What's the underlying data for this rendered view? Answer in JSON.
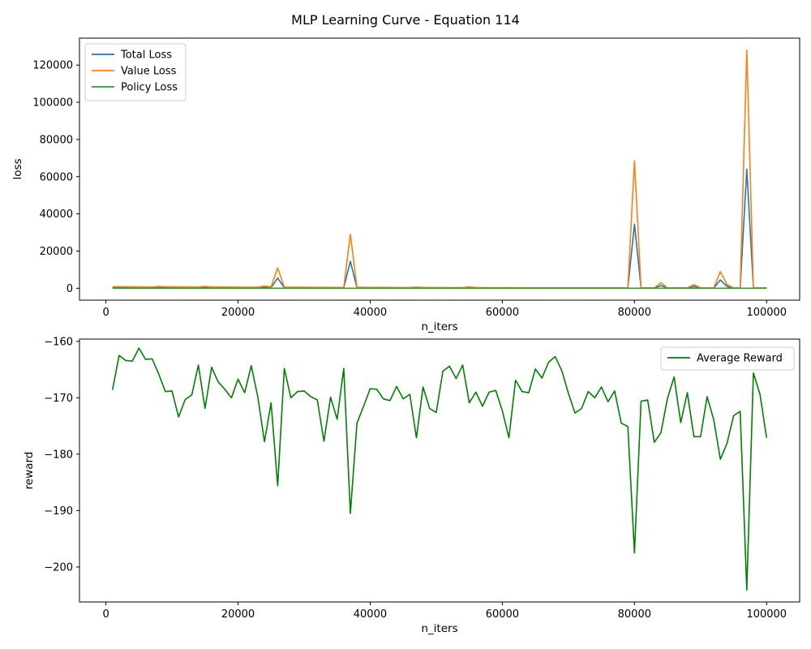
{
  "figure": {
    "title": "MLP Learning Curve - Equation 114"
  },
  "chart_data": [
    {
      "type": "line",
      "title": "",
      "xlabel": "n_iters",
      "ylabel": "loss",
      "xlim": [
        -4000,
        105000
      ],
      "ylim": [
        -6400,
        134500
      ],
      "xticks": [
        0,
        20000,
        40000,
        60000,
        80000,
        100000
      ],
      "yticks": [
        0,
        20000,
        40000,
        60000,
        80000,
        100000,
        120000
      ],
      "grid": false,
      "legend": "upper-left",
      "x": [
        1000,
        2000,
        3000,
        4000,
        5000,
        6000,
        7000,
        8000,
        9000,
        10000,
        11000,
        12000,
        13000,
        14000,
        15000,
        16000,
        17000,
        18000,
        19000,
        20000,
        21000,
        22000,
        23000,
        24000,
        25000,
        26000,
        27000,
        28000,
        29000,
        30000,
        31000,
        32000,
        33000,
        34000,
        35000,
        36000,
        37000,
        38000,
        39000,
        40000,
        41000,
        42000,
        43000,
        44000,
        45000,
        46000,
        47000,
        48000,
        49000,
        50000,
        51000,
        52000,
        53000,
        54000,
        55000,
        56000,
        57000,
        58000,
        59000,
        60000,
        61000,
        62000,
        63000,
        64000,
        65000,
        66000,
        67000,
        68000,
        69000,
        70000,
        71000,
        72000,
        73000,
        74000,
        75000,
        76000,
        77000,
        78000,
        79000,
        80000,
        81000,
        82000,
        83000,
        84000,
        85000,
        86000,
        87000,
        88000,
        89000,
        90000,
        91000,
        92000,
        93000,
        94000,
        95000,
        96000,
        97000,
        98000,
        99000,
        100000
      ],
      "series": [
        {
          "name": "Total Loss",
          "color": "#1f77b4",
          "values": [
            450,
            420,
            400,
            380,
            360,
            340,
            330,
            500,
            400,
            380,
            360,
            350,
            330,
            320,
            500,
            350,
            330,
            320,
            310,
            300,
            290,
            280,
            270,
            600,
            350,
            5500,
            300,
            290,
            280,
            270,
            260,
            250,
            240,
            230,
            220,
            210,
            14500,
            250,
            240,
            230,
            220,
            230,
            220,
            210,
            200,
            210,
            300,
            220,
            210,
            200,
            190,
            180,
            170,
            160,
            400,
            180,
            170,
            160,
            150,
            160,
            170,
            150,
            140,
            130,
            120,
            110,
            100,
            100,
            100,
            100,
            100,
            100,
            150,
            120,
            110,
            100,
            100,
            100,
            100,
            34500,
            120,
            110,
            100,
            1500,
            100,
            100,
            100,
            100,
            1000,
            100,
            100,
            100,
            4500,
            1000,
            100,
            100,
            64000,
            150,
            100,
            100
          ]
        },
        {
          "name": "Value Loss",
          "color": "#ff7f0e",
          "values": [
            900,
            850,
            800,
            760,
            720,
            690,
            660,
            1000,
            800,
            760,
            720,
            700,
            660,
            640,
            1000,
            700,
            660,
            640,
            620,
            600,
            580,
            560,
            540,
            1200,
            700,
            11000,
            600,
            580,
            560,
            540,
            520,
            500,
            480,
            460,
            440,
            420,
            29000,
            500,
            480,
            460,
            440,
            460,
            440,
            420,
            400,
            420,
            600,
            440,
            420,
            400,
            380,
            360,
            340,
            320,
            800,
            360,
            340,
            320,
            300,
            320,
            340,
            300,
            280,
            260,
            240,
            220,
            200,
            200,
            200,
            200,
            200,
            200,
            300,
            240,
            220,
            200,
            200,
            200,
            200,
            68500,
            240,
            220,
            200,
            3000,
            200,
            200,
            200,
            200,
            2000,
            200,
            200,
            200,
            9000,
            2000,
            200,
            200,
            128000,
            300,
            200,
            200
          ]
        },
        {
          "name": "Policy Loss",
          "color": "#2ca02c",
          "values": [
            20,
            20,
            20,
            20,
            20,
            20,
            20,
            20,
            20,
            20,
            20,
            20,
            20,
            20,
            20,
            20,
            20,
            20,
            20,
            20,
            20,
            20,
            20,
            20,
            20,
            20,
            20,
            20,
            20,
            20,
            20,
            20,
            20,
            20,
            20,
            20,
            20,
            20,
            20,
            20,
            20,
            20,
            20,
            20,
            20,
            20,
            20,
            20,
            20,
            20,
            20,
            20,
            20,
            20,
            20,
            20,
            20,
            20,
            20,
            20,
            20,
            20,
            20,
            20,
            20,
            20,
            20,
            20,
            20,
            20,
            20,
            20,
            20,
            20,
            20,
            20,
            20,
            20,
            20,
            20,
            20,
            20,
            20,
            20,
            20,
            20,
            20,
            20,
            20,
            20,
            20,
            20,
            20,
            20,
            20,
            20,
            20,
            20,
            20,
            20
          ]
        }
      ]
    },
    {
      "type": "line",
      "title": "",
      "xlabel": "n_iters",
      "ylabel": "reward",
      "xlim": [
        -4000,
        105000
      ],
      "ylim": [
        -206.2,
        -159.6
      ],
      "xticks": [
        0,
        20000,
        40000,
        60000,
        80000,
        100000
      ],
      "yticks": [
        -160,
        -170,
        -180,
        -190,
        -200
      ],
      "grid": false,
      "legend": "upper-right",
      "x": [
        1000,
        2000,
        3000,
        4000,
        5000,
        6000,
        7000,
        8000,
        9000,
        10000,
        11000,
        12000,
        13000,
        14000,
        15000,
        16000,
        17000,
        18000,
        19000,
        20000,
        21000,
        22000,
        23000,
        24000,
        25000,
        26000,
        27000,
        28000,
        29000,
        30000,
        31000,
        32000,
        33000,
        34000,
        35000,
        36000,
        37000,
        38000,
        39000,
        40000,
        41000,
        42000,
        43000,
        44000,
        45000,
        46000,
        47000,
        48000,
        49000,
        50000,
        51000,
        52000,
        53000,
        54000,
        55000,
        56000,
        57000,
        58000,
        59000,
        60000,
        61000,
        62000,
        63000,
        64000,
        65000,
        66000,
        67000,
        68000,
        69000,
        70000,
        71000,
        72000,
        73000,
        74000,
        75000,
        76000,
        77000,
        78000,
        79000,
        80000,
        81000,
        82000,
        83000,
        84000,
        85000,
        86000,
        87000,
        88000,
        89000,
        90000,
        91000,
        92000,
        93000,
        94000,
        95000,
        96000,
        97000,
        98000,
        99000,
        100000
      ],
      "series": [
        {
          "name": "Average Reward",
          "color": "#008000",
          "values": [
            -168.6,
            -162.5,
            -163.4,
            -163.5,
            -161.2,
            -163.2,
            -163.1,
            -165.8,
            -168.9,
            -168.8,
            -173.4,
            -170.3,
            -169.5,
            -164.2,
            -171.9,
            -164.6,
            -167.2,
            -168.5,
            -170.0,
            -166.7,
            -169.1,
            -164.3,
            -169.9,
            -177.8,
            -170.9,
            -185.6,
            -164.8,
            -170.0,
            -168.9,
            -168.8,
            -169.8,
            -170.4,
            -177.7,
            -169.9,
            -173.8,
            -164.8,
            -190.5,
            -174.5,
            -171.5,
            -168.4,
            -168.5,
            -170.2,
            -170.5,
            -168.0,
            -170.2,
            -169.4,
            -177.1,
            -168.1,
            -171.9,
            -172.6,
            -165.3,
            -164.4,
            -166.6,
            -164.2,
            -170.9,
            -169.0,
            -171.5,
            -169.0,
            -168.7,
            -172.3,
            -177.1,
            -166.9,
            -168.9,
            -169.1,
            -164.9,
            -166.5,
            -163.7,
            -162.7,
            -165.2,
            -169.2,
            -172.7,
            -171.9,
            -168.9,
            -170.0,
            -168.1,
            -170.7,
            -168.8,
            -174.5,
            -175.1,
            -197.5,
            -170.6,
            -170.4,
            -177.9,
            -176.2,
            -170.1,
            -166.3,
            -174.4,
            -169.1,
            -176.9,
            -176.9,
            -169.8,
            -173.9,
            -180.9,
            -178.1,
            -173.2,
            -172.4,
            -204.1,
            -165.6,
            -169.4,
            -177.1
          ]
        }
      ]
    }
  ]
}
